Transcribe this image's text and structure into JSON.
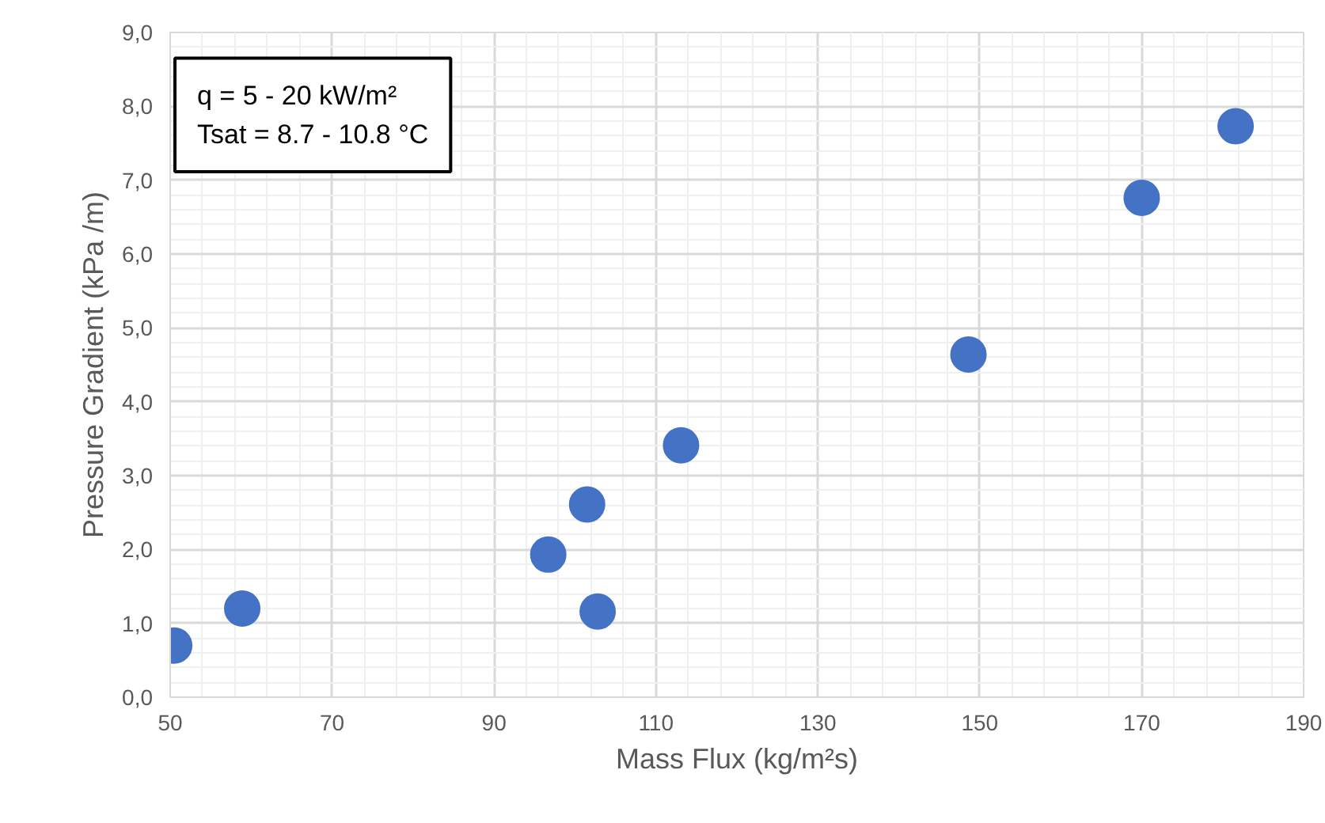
{
  "chart_data": {
    "type": "scatter",
    "xlabel": "Mass Flux (kg/m²s)",
    "ylabel": "Pressure Gradient (kPa /m)",
    "annotations": [
      "q = 5 - 20 kW/m²",
      "Tsat = 8.7 - 10.8 °C"
    ],
    "x": [
      50.5,
      58.9,
      96.7,
      101.5,
      102.8,
      113.1,
      148.6,
      170.0,
      181.6
    ],
    "series": [
      {
        "color": "#4472c4",
        "values": [
          0.7,
          1.2,
          1.93,
          2.61,
          1.16,
          3.41,
          4.64,
          6.76,
          7.73
        ]
      }
    ],
    "marker": "circle",
    "grid": true,
    "xlim": [
      50,
      190
    ],
    "xticks": [
      50,
      70,
      90,
      110,
      130,
      150,
      170,
      190
    ],
    "ylim": [
      0,
      9
    ],
    "yticks": [
      {
        "value": 0,
        "label": "0,0"
      },
      {
        "value": 1,
        "label": "1,0"
      },
      {
        "value": 2,
        "label": "2,0"
      },
      {
        "value": 3,
        "label": "3,0"
      },
      {
        "value": 4,
        "label": "4,0"
      },
      {
        "value": 5,
        "label": "5,0"
      },
      {
        "value": 6,
        "label": "6,0"
      },
      {
        "value": 7,
        "label": "7,0"
      },
      {
        "value": 8,
        "label": "8,0"
      },
      {
        "value": 9,
        "label": "9,0"
      }
    ]
  }
}
